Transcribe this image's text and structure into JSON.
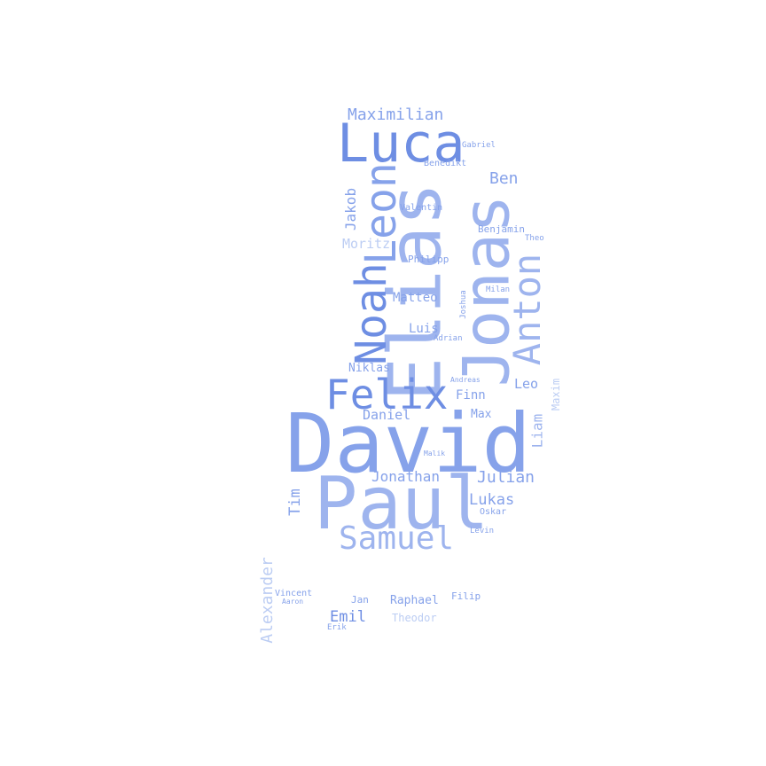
{
  "colors": {
    "strong": "#6e8ee3",
    "mid": "#86a2ea",
    "soft": "#9eb4ee",
    "pale": "#bccdf3"
  },
  "words": [
    {
      "text": "David",
      "tone": "mid"
    },
    {
      "text": "Paul",
      "tone": "soft"
    },
    {
      "text": "Elias",
      "tone": "soft"
    },
    {
      "text": "Jonas",
      "tone": "soft"
    },
    {
      "text": "Luca",
      "tone": "strong"
    },
    {
      "text": "Leon",
      "tone": "mid"
    },
    {
      "text": "Noah",
      "tone": "strong"
    },
    {
      "text": "Felix",
      "tone": "strong"
    },
    {
      "text": "Anton",
      "tone": "soft"
    },
    {
      "text": "Samuel",
      "tone": "soft"
    },
    {
      "text": "Maximilian",
      "tone": "mid"
    },
    {
      "text": "Ben",
      "tone": "mid"
    },
    {
      "text": "Jakob",
      "tone": "mid"
    },
    {
      "text": "Moritz",
      "tone": "pale"
    },
    {
      "text": "Matteo",
      "tone": "mid"
    },
    {
      "text": "Luis",
      "tone": "mid"
    },
    {
      "text": "Niklas",
      "tone": "mid"
    },
    {
      "text": "Daniel",
      "tone": "mid"
    },
    {
      "text": "Finn",
      "tone": "mid"
    },
    {
      "text": "Leo",
      "tone": "mid"
    },
    {
      "text": "Max",
      "tone": "mid"
    },
    {
      "text": "Liam",
      "tone": "soft"
    },
    {
      "text": "Maxim",
      "tone": "pale"
    },
    {
      "text": "Jonathan",
      "tone": "mid"
    },
    {
      "text": "Julian",
      "tone": "mid"
    },
    {
      "text": "Lukas",
      "tone": "mid"
    },
    {
      "text": "Tim",
      "tone": "mid"
    },
    {
      "text": "Alexander",
      "tone": "pale"
    },
    {
      "text": "Emil",
      "tone": "strong"
    },
    {
      "text": "Raphael",
      "tone": "mid"
    },
    {
      "text": "Theodor",
      "tone": "pale"
    },
    {
      "text": "Filip",
      "tone": "mid"
    },
    {
      "text": "Jan",
      "tone": "mid"
    },
    {
      "text": "Vincent",
      "tone": "mid"
    },
    {
      "text": "Aaron",
      "tone": "mid"
    },
    {
      "text": "Erik",
      "tone": "mid"
    },
    {
      "text": "Gabriel",
      "tone": "mid"
    },
    {
      "text": "Benedikt",
      "tone": "mid"
    },
    {
      "text": "Valentin",
      "tone": "mid"
    },
    {
      "text": "Benjamin",
      "tone": "mid"
    },
    {
      "text": "Theo",
      "tone": "mid"
    },
    {
      "text": "Philipp",
      "tone": "mid"
    },
    {
      "text": "Milan",
      "tone": "mid"
    },
    {
      "text": "Joshua",
      "tone": "mid"
    },
    {
      "text": "Adrian",
      "tone": "mid"
    },
    {
      "text": "Andreas",
      "tone": "mid"
    },
    {
      "text": "Malik",
      "tone": "mid"
    },
    {
      "text": "Oskar",
      "tone": "mid"
    },
    {
      "text": "Levin",
      "tone": "mid"
    }
  ]
}
